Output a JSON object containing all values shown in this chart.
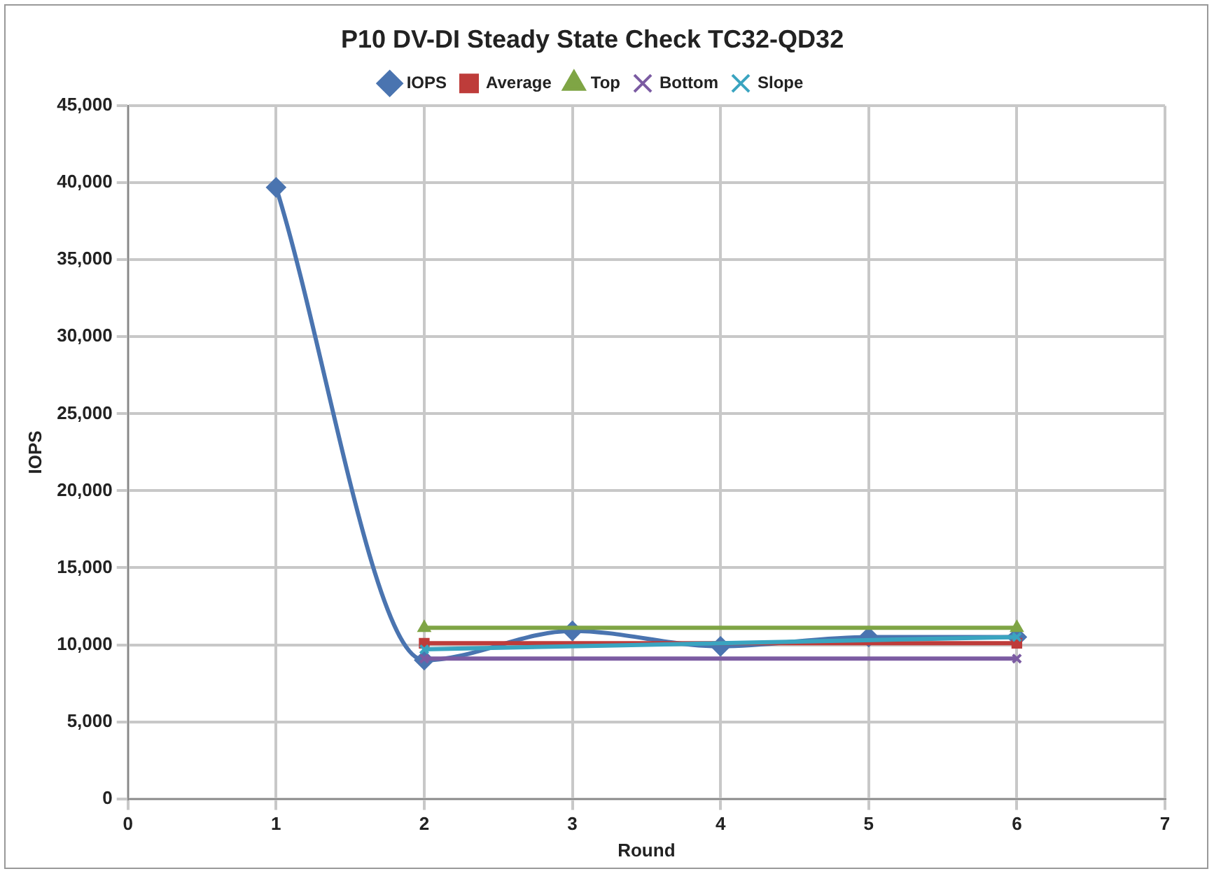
{
  "chart_data": {
    "type": "line",
    "title": "P10 DV-DI Steady State Check TC32-QD32",
    "xlabel": "Round",
    "ylabel": "IOPS",
    "xlim": [
      0,
      7
    ],
    "xticks": [
      0,
      1,
      2,
      3,
      4,
      5,
      6,
      7
    ],
    "ylim": [
      0,
      45000
    ],
    "yticks": [
      0,
      {
        "value": 5000,
        "label": "5,000"
      },
      {
        "value": 10000,
        "label": "10,000"
      },
      {
        "value": 15000,
        "label": "15,000"
      },
      {
        "value": 20000,
        "label": "20,000"
      },
      {
        "value": 25000,
        "label": "25,000"
      },
      {
        "value": 30000,
        "label": "30,000"
      },
      {
        "value": 35000,
        "label": "35,000"
      },
      {
        "value": 40000,
        "label": "40,000"
      },
      {
        "value": 45000,
        "label": "45,000"
      }
    ],
    "grid": true,
    "legend": "top",
    "series": [
      {
        "name": "IOPS",
        "color": "#4a74b0",
        "marker": "diamond",
        "x": [
          1,
          2,
          3,
          4,
          5,
          6
        ],
        "values": [
          39700,
          9000,
          10900,
          9900,
          10500,
          10500
        ]
      },
      {
        "name": "Average",
        "color": "#be3c3a",
        "marker": "square",
        "x": [
          2,
          6
        ],
        "values": [
          10100,
          10100
        ]
      },
      {
        "name": "Top",
        "color": "#7fa545",
        "marker": "triangle",
        "x": [
          2,
          6
        ],
        "values": [
          11100,
          11100
        ]
      },
      {
        "name": "Bottom",
        "color": "#7b5ba2",
        "marker": "cross",
        "x": [
          2,
          6
        ],
        "values": [
          9100,
          9100
        ]
      },
      {
        "name": "Slope",
        "color": "#3aa4c0",
        "marker": "cross",
        "x": [
          2,
          6
        ],
        "values": [
          9700,
          10500
        ]
      }
    ]
  }
}
